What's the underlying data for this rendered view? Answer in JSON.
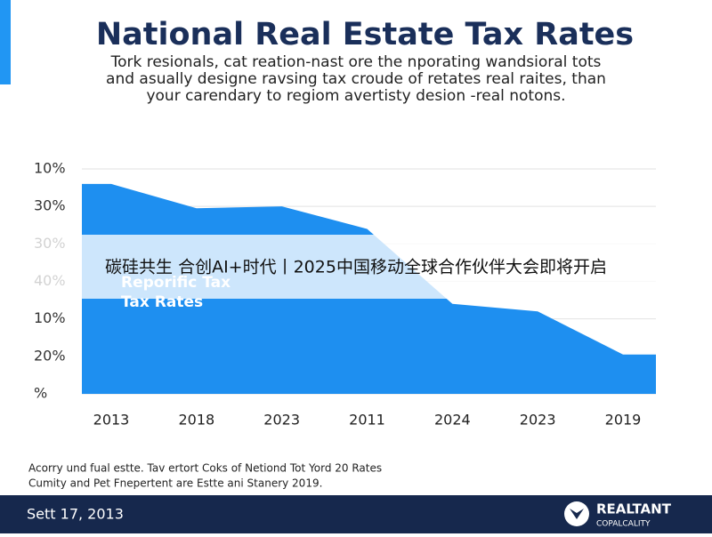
{
  "header": {
    "title": "National Real Estate Tax Rates",
    "subtitle": [
      "Tork resionals, cat reation-nast ore the nporating wandsioral tots",
      "and asually designe ravsing tax croude of retates real raites, than",
      "your carendary to regiom avertisty desion -real notons."
    ]
  },
  "chart_data": {
    "type": "area",
    "categories": [
      "2013",
      "2018",
      "2023",
      "2011",
      "2024",
      "2023",
      "2019"
    ],
    "values": [
      5.6,
      4.95,
      5.0,
      4.4,
      2.4,
      2.2,
      1.05
    ],
    "color": "#1e8ff0",
    "ylim": [
      0,
      6
    ],
    "yticks": [
      {
        "value": 0,
        "label": "%"
      },
      {
        "value": 1,
        "label": "20%"
      },
      {
        "value": 2,
        "label": "10%"
      },
      {
        "value": 3,
        "label": "40%"
      },
      {
        "value": 4,
        "label": "30%"
      },
      {
        "value": 5,
        "label": "30%"
      },
      {
        "value": 6,
        "label": "10%"
      }
    ],
    "grid": true,
    "annotation": [
      "Reporific Tax",
      "Tax Rates"
    ]
  },
  "banner": {
    "text": "碳硅共生 合创AI+时代丨2025中国移动全球合作伙伴大会即将开启"
  },
  "footnote": [
    "Acorry und fual estte. Tav ertort Coks of Netiond Tot Yord 20 Rates",
    "Cumity and Pet Fnepertent are Estte ani Stanery 2019."
  ],
  "footer": {
    "date": "Sett 17, 2013",
    "brand": "REALTANT",
    "tagline": "COPALCALITY"
  }
}
